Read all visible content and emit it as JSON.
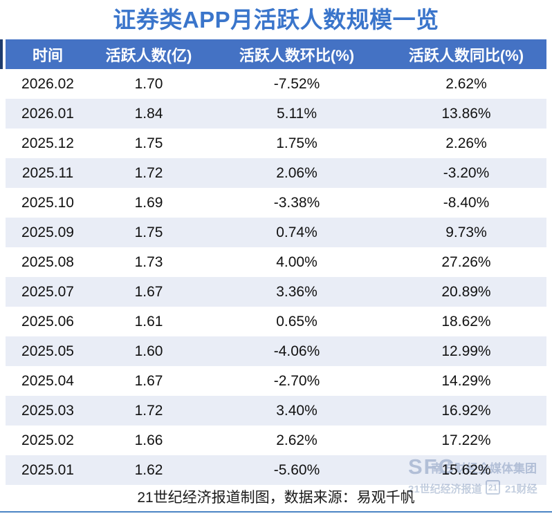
{
  "title": "证券类APP月活跃人数规模一览",
  "chart_data": {
    "type": "table",
    "title": "证券类APP月活跃人数规模一览",
    "columns": [
      "时间",
      "活跃人数(亿)",
      "活跃人数环比(%)",
      "活跃人数同比(%)"
    ],
    "rows": [
      [
        "2026.02",
        "1.70",
        "-7.52%",
        "2.62%"
      ],
      [
        "2026.01",
        "1.84",
        "5.11%",
        "13.86%"
      ],
      [
        "2025.12",
        "1.75",
        "1.75%",
        "2.26%"
      ],
      [
        "2025.11",
        "1.72",
        "2.06%",
        "-3.20%"
      ],
      [
        "2025.10",
        "1.69",
        "-3.38%",
        "-8.40%"
      ],
      [
        "2025.09",
        "1.75",
        "0.74%",
        "9.73%"
      ],
      [
        "2025.08",
        "1.73",
        "4.00%",
        "27.26%"
      ],
      [
        "2025.07",
        "1.67",
        "3.36%",
        "20.89%"
      ],
      [
        "2025.06",
        "1.61",
        "0.65%",
        "18.62%"
      ],
      [
        "2025.05",
        "1.60",
        "-4.06%",
        "12.99%"
      ],
      [
        "2025.04",
        "1.67",
        "-2.70%",
        "14.29%"
      ],
      [
        "2025.03",
        "1.72",
        "3.40%",
        "16.92%"
      ],
      [
        "2025.02",
        "1.66",
        "2.62%",
        "17.22%"
      ],
      [
        "2025.01",
        "1.62",
        "-5.60%",
        "15.62%"
      ]
    ],
    "layout": {
      "striped": true,
      "stripe_rows": "even",
      "header_position": "top"
    }
  },
  "footer": {
    "note": "21世纪经济报道制图，数据来源：易观千帆"
  },
  "watermark": {
    "sfc": "SFC",
    "group": "南方财经全媒体集团",
    "paper": "21世纪经济报道",
    "badge": "21",
    "channel": "21财经"
  },
  "colors": {
    "title_text": "#3A75CB",
    "header_bg": "#4472C4",
    "header_text": "#FFFFFF",
    "row_alt_bg": "#E9EDF6",
    "body_text": "#111111",
    "accent_bar": "#1E3C6E",
    "bottom_line": "#4A84C4",
    "watermark": "#C3CEDF"
  }
}
